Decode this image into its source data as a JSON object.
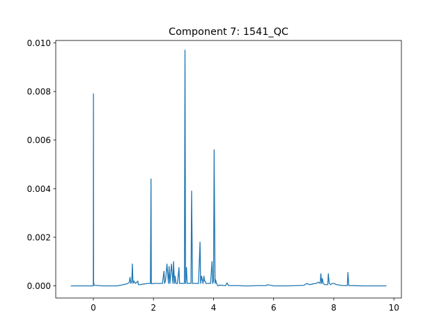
{
  "chart_data": {
    "type": "line",
    "title": "Component 7: 1541_QC",
    "xlabel": "",
    "ylabel": "",
    "xlim": [
      -1.25,
      10.25
    ],
    "ylim": [
      -0.0005,
      0.0101
    ],
    "xticks": [
      0,
      2,
      4,
      6,
      8,
      10
    ],
    "xtick_labels": [
      "0",
      "2",
      "4",
      "6",
      "8",
      "10"
    ],
    "yticks": [
      0.0,
      0.002,
      0.004,
      0.006,
      0.008,
      0.01
    ],
    "ytick_labels": [
      "0.000",
      "0.002",
      "0.004",
      "0.006",
      "0.008",
      "0.010"
    ],
    "grid": false,
    "line_color": "#1f77b4",
    "series": [
      {
        "x": [
          -0.75,
          0.0,
          0.005,
          0.01,
          0.02,
          0.05,
          0.3,
          0.8,
          1.0,
          1.1,
          1.15,
          1.2,
          1.22,
          1.25,
          1.28,
          1.3,
          1.32,
          1.35,
          1.4,
          1.45,
          1.48,
          1.5,
          1.55,
          1.6,
          1.7,
          1.8,
          1.9,
          1.92,
          1.93,
          1.95,
          2.0,
          2.1,
          2.2,
          2.3,
          2.35,
          2.37,
          2.4,
          2.45,
          2.5,
          2.52,
          2.55,
          2.6,
          2.65,
          2.67,
          2.7,
          2.72,
          2.75,
          2.8,
          2.85,
          2.87,
          2.9,
          2.95,
          3.0,
          3.03,
          3.05,
          3.07,
          3.1,
          3.12,
          3.15,
          3.2,
          3.25,
          3.27,
          3.3,
          3.35,
          3.4,
          3.45,
          3.5,
          3.55,
          3.57,
          3.6,
          3.65,
          3.68,
          3.7,
          3.72,
          3.75,
          3.8,
          3.85,
          3.9,
          3.95,
          3.97,
          4.0,
          4.02,
          4.05,
          4.07,
          4.1,
          4.12,
          4.15,
          4.2,
          4.3,
          4.4,
          4.45,
          4.5,
          4.6,
          4.8,
          5.0,
          5.2,
          5.5,
          5.75,
          5.8,
          6.0,
          6.5,
          7.0,
          7.1,
          7.2,
          7.3,
          7.4,
          7.5,
          7.55,
          7.57,
          7.6,
          7.62,
          7.65,
          7.7,
          7.8,
          7.82,
          7.85,
          7.9,
          7.95,
          8.0,
          8.1,
          8.3,
          8.45,
          8.47,
          8.5,
          8.6,
          9.0,
          9.5,
          9.75
        ],
        "y": [
          0.0,
          0.0,
          0.0079,
          0.0002,
          5e-05,
          2e-05,
          0.0,
          0.0,
          5e-05,
          8e-05,
          0.0001,
          0.00015,
          0.00035,
          0.0001,
          0.0002,
          0.0009,
          0.0001,
          0.0002,
          0.0001,
          0.00015,
          0.0002,
          5e-05,
          5e-05,
          6e-05,
          8e-05,
          0.0001,
          0.0001,
          0.0044,
          0.0001,
          8e-05,
          0.0001,
          0.0001,
          0.0001,
          0.0001,
          0.0006,
          0.0001,
          0.0002,
          0.0009,
          0.0001,
          0.0008,
          0.0001,
          0.0009,
          0.0001,
          0.001,
          0.0001,
          0.0004,
          0.0001,
          0.0001,
          0.00075,
          0.0001,
          0.0001,
          0.0001,
          0.0001,
          0.0001,
          0.0097,
          0.0001,
          0.00075,
          0.0001,
          0.0001,
          0.0001,
          0.0001,
          0.0039,
          0.0001,
          0.0001,
          0.0001,
          0.0001,
          0.0001,
          0.0018,
          0.0001,
          0.0004,
          0.0001,
          0.0004,
          0.0002,
          0.0002,
          0.0001,
          0.0001,
          0.0001,
          0.0001,
          0.001,
          0.0001,
          0.0002,
          0.0056,
          0.0001,
          0.00025,
          0.0001,
          5e-05,
          0.0,
          3e-05,
          2e-05,
          1e-05,
          0.00012,
          1e-05,
          1e-05,
          1e-05,
          0.0,
          0.0,
          1e-05,
          1e-05,
          5e-05,
          0.0,
          0.0,
          2e-05,
          0.0001,
          5e-05,
          8e-05,
          0.0001,
          0.00015,
          0.0001,
          0.0005,
          0.0001,
          0.0003,
          0.0001,
          5e-05,
          5e-05,
          0.0005,
          0.0001,
          5e-05,
          0.0001,
          0.0001,
          5e-05,
          1e-05,
          1e-05,
          0.00055,
          1e-05,
          1e-05,
          0.0,
          0.0,
          0.0
        ]
      }
    ]
  }
}
